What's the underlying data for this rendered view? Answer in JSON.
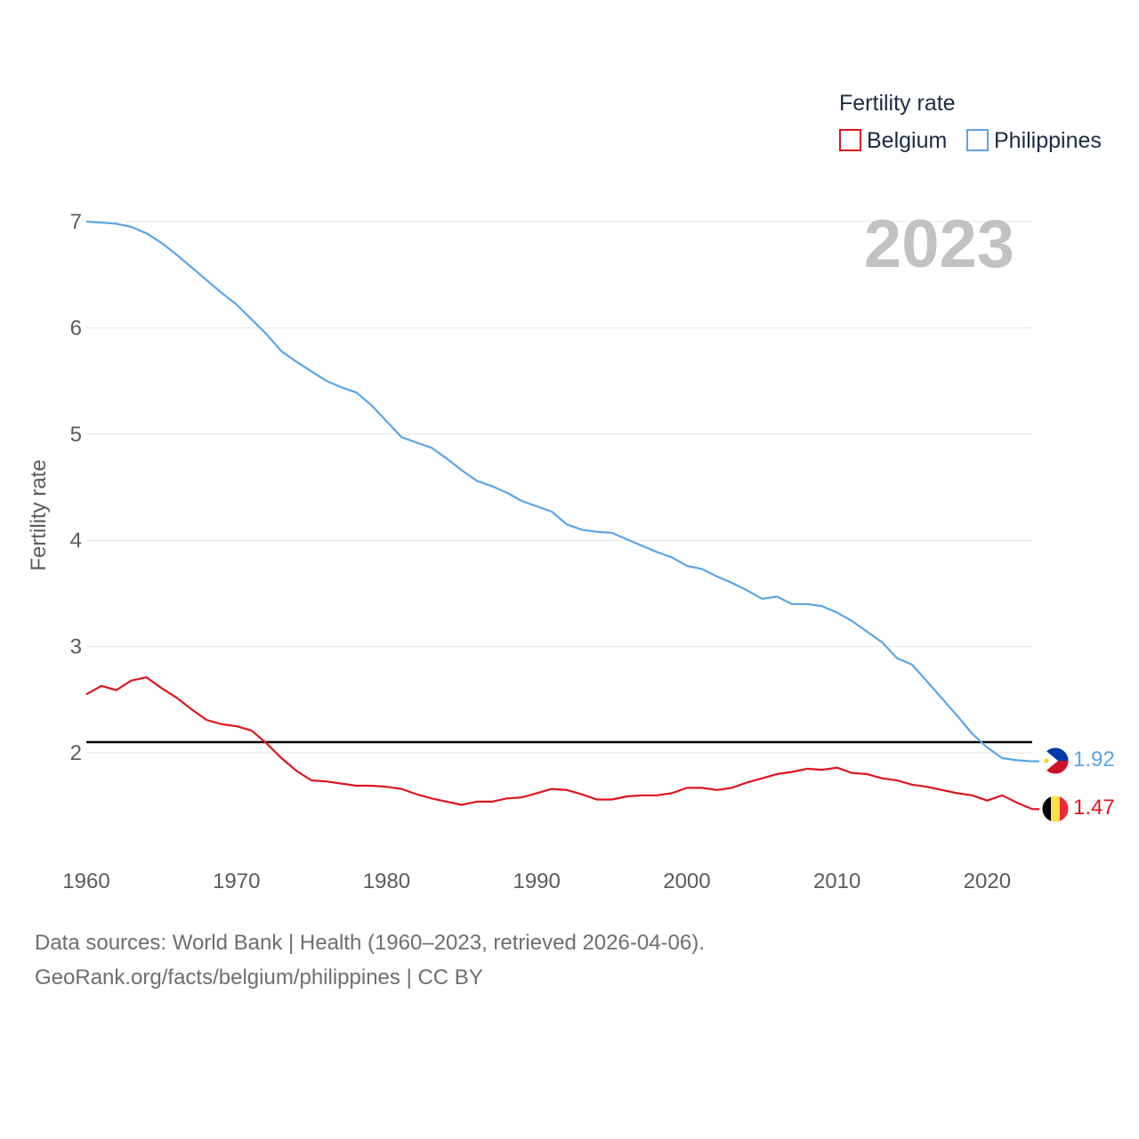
{
  "chart_data": {
    "type": "line",
    "ylabel": "Fertility rate",
    "xlabel": "",
    "year_label": "2023",
    "xlim": [
      1960,
      2023
    ],
    "ylim": [
      1,
      7.2
    ],
    "x_ticks": [
      1960,
      1970,
      1980,
      1990,
      2000,
      2010,
      2020
    ],
    "y_ticks": [
      2,
      3,
      4,
      5,
      6,
      7
    ],
    "grid": true,
    "legend": {
      "title": "Fertility rate",
      "position": "top-right",
      "entries": [
        {
          "name": "Belgium",
          "color": "#e0141e"
        },
        {
          "name": "Philippines",
          "color": "#5aa5e6"
        }
      ]
    },
    "reference_line": {
      "value": 2.1,
      "color": "#000000"
    },
    "x": [
      1960,
      1961,
      1962,
      1963,
      1964,
      1965,
      1966,
      1967,
      1968,
      1969,
      1970,
      1971,
      1972,
      1973,
      1974,
      1975,
      1976,
      1977,
      1978,
      1979,
      1980,
      1981,
      1982,
      1983,
      1984,
      1985,
      1986,
      1987,
      1988,
      1989,
      1990,
      1991,
      1992,
      1993,
      1994,
      1995,
      1996,
      1997,
      1998,
      1999,
      2000,
      2001,
      2002,
      2003,
      2004,
      2005,
      2006,
      2007,
      2008,
      2009,
      2010,
      2011,
      2012,
      2013,
      2014,
      2015,
      2016,
      2017,
      2018,
      2019,
      2020,
      2021,
      2022,
      2023
    ],
    "series": [
      {
        "name": "Belgium",
        "color": "#e0141e",
        "end_label": "1.47",
        "values": [
          2.55,
          2.63,
          2.59,
          2.68,
          2.71,
          2.61,
          2.52,
          2.41,
          2.31,
          2.27,
          2.25,
          2.21,
          2.09,
          1.95,
          1.83,
          1.74,
          1.73,
          1.71,
          1.69,
          1.69,
          1.68,
          1.66,
          1.61,
          1.57,
          1.54,
          1.51,
          1.54,
          1.54,
          1.57,
          1.58,
          1.62,
          1.66,
          1.65,
          1.61,
          1.56,
          1.56,
          1.59,
          1.6,
          1.6,
          1.62,
          1.67,
          1.67,
          1.65,
          1.67,
          1.72,
          1.76,
          1.8,
          1.82,
          1.85,
          1.84,
          1.86,
          1.81,
          1.8,
          1.76,
          1.74,
          1.7,
          1.68,
          1.65,
          1.62,
          1.6,
          1.55,
          1.6,
          1.53,
          1.47
        ]
      },
      {
        "name": "Philippines",
        "color": "#5aa5e6",
        "end_label": "1.92",
        "values": [
          7.0,
          6.99,
          6.98,
          6.95,
          6.89,
          6.8,
          6.69,
          6.57,
          6.45,
          6.33,
          6.22,
          6.08,
          5.94,
          5.78,
          5.68,
          5.59,
          5.5,
          5.44,
          5.39,
          5.27,
          5.12,
          4.97,
          4.92,
          4.87,
          4.77,
          4.66,
          4.56,
          4.51,
          4.45,
          4.37,
          4.32,
          4.27,
          4.15,
          4.1,
          4.08,
          4.07,
          4.01,
          3.95,
          3.89,
          3.84,
          3.76,
          3.73,
          3.66,
          3.6,
          3.53,
          3.45,
          3.47,
          3.4,
          3.4,
          3.38,
          3.32,
          3.24,
          3.14,
          3.04,
          2.89,
          2.83,
          2.67,
          2.51,
          2.35,
          2.18,
          2.05,
          1.95,
          1.93,
          1.92
        ]
      }
    ]
  },
  "footer": {
    "sources": "Data sources: World Bank | Health (1960–2023, retrieved 2026-04-06).",
    "attribution": "GeoRank.org/facts/belgium/philippines | CC BY"
  }
}
